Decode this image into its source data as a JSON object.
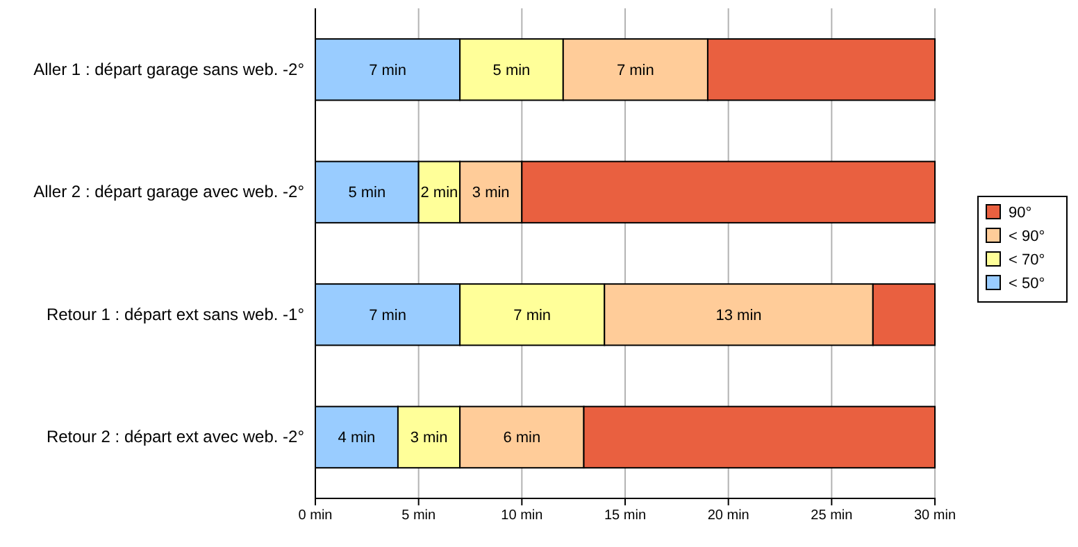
{
  "chart_data": {
    "type": "bar",
    "orientation": "horizontal",
    "stacked": true,
    "categories": [
      "Aller 1 : départ garage sans web. -2°",
      "Aller 2 : départ garage avec web. -2°",
      "Retour 1 : départ ext sans web. -1°",
      "Retour 2 : départ ext avec web. -2°"
    ],
    "series": [
      {
        "name": "< 50°",
        "color": "#99ccff",
        "values": [
          7,
          5,
          7,
          4
        ],
        "value_labels": [
          "7 min",
          "5 min",
          "7 min",
          "4 min"
        ]
      },
      {
        "name": "< 70°",
        "color": "#ffff99",
        "values": [
          5,
          2,
          7,
          3
        ],
        "value_labels": [
          "5 min",
          "2 min",
          "7 min",
          "3 min"
        ]
      },
      {
        "name": "< 90°",
        "color": "#ffcc99",
        "values": [
          7,
          3,
          13,
          6
        ],
        "value_labels": [
          "7 min",
          "3 min",
          "13 min",
          "6 min"
        ]
      },
      {
        "name": "90°",
        "color": "#e96040",
        "values": [
          11,
          20,
          3,
          17
        ]
      }
    ],
    "xlim": [
      0,
      30
    ],
    "xticks": [
      {
        "value": 0,
        "label": "0 min"
      },
      {
        "value": 5,
        "label": "5 min"
      },
      {
        "value": 10,
        "label": "10 min"
      },
      {
        "value": 15,
        "label": "15 min"
      },
      {
        "value": 20,
        "label": "20 min"
      },
      {
        "value": 25,
        "label": "25 min"
      },
      {
        "value": 30,
        "label": "30 min"
      }
    ],
    "grid": "x",
    "legend": "right"
  }
}
